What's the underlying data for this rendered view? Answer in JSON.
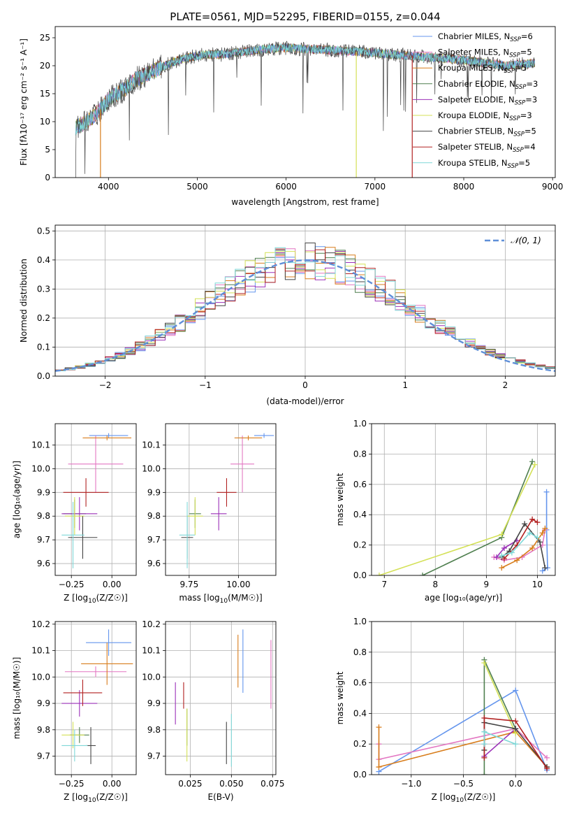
{
  "title": "PLATE=0561, MJD=52295, FIBERID=0155, z=0.044",
  "colors": {
    "chabrier_miles": "#6495ed",
    "salpeter_miles": "#e377c2",
    "kroupa_miles": "#d87d1c",
    "chabrier_elodie": "#4f7f4f",
    "salpeter_elodie": "#9b30b8",
    "kroupa_elodie": "#d4e157",
    "chabrier_stelib": "#444444",
    "salpeter_stelib": "#b22222",
    "kroupa_stelib": "#7fd8d8",
    "grid": "#b0b0b0",
    "normal_curve": "#5f8fd8"
  },
  "chart_data": [
    {
      "id": "spectrum",
      "type": "line",
      "xlabel": "wavelength [Angstrom, rest frame]",
      "ylabel": "Flux [fλ10⁻¹⁷ erg cm⁻² s⁻¹ A⁻¹]",
      "xlim": [
        3400,
        9030
      ],
      "ylim": [
        0,
        27
      ],
      "xticks": [
        4000,
        5000,
        6000,
        7000,
        8000,
        9000
      ],
      "yticks": [
        0,
        5,
        10,
        15,
        20,
        25
      ],
      "grid": false,
      "legend_position": "top-right",
      "legend": [
        {
          "label": "Chabrier MILES, N",
          "sub": "SSP",
          "tail": "=6",
          "color_key": "chabrier_miles"
        },
        {
          "label": "Salpeter MILES, N",
          "sub": "SSP",
          "tail": "=5",
          "color_key": "salpeter_miles"
        },
        {
          "label": "Kroupa MILES, N",
          "sub": "SSP",
          "tail": "=5",
          "color_key": "kroupa_miles"
        },
        {
          "label": "Chabrier ELODIE, N",
          "sub": "SSP",
          "tail": "=3",
          "color_key": "chabrier_elodie"
        },
        {
          "label": "Salpeter ELODIE, N",
          "sub": "SSP",
          "tail": "=3",
          "color_key": "salpeter_elodie"
        },
        {
          "label": "Kroupa ELODIE, N",
          "sub": "SSP",
          "tail": "=3",
          "color_key": "kroupa_elodie"
        },
        {
          "label": "Chabrier STELIB, N",
          "sub": "SSP",
          "tail": "=5",
          "color_key": "chabrier_stelib"
        },
        {
          "label": "Salpeter STELIB, N",
          "sub": "SSP",
          "tail": "=4",
          "color_key": "salpeter_stelib"
        },
        {
          "label": "Kroupa STELIB, N",
          "sub": "SSP",
          "tail": "=5",
          "color_key": "kroupa_stelib"
        }
      ],
      "data_envelope": {
        "x": [
          3630,
          3700,
          3800,
          3900,
          4000,
          4100,
          4200,
          4300,
          4500,
          4700,
          4900,
          5100,
          5300,
          5500,
          5800,
          6000,
          6200,
          6500,
          6800,
          7000,
          7200,
          7400,
          7600,
          8000,
          8500,
          8800
        ],
        "y": [
          9,
          9.5,
          10.5,
          12,
          14,
          15,
          16,
          17.5,
          19,
          20.5,
          21.5,
          22,
          22,
          22.5,
          23,
          23.2,
          23,
          22.8,
          22.5,
          22.3,
          22,
          21.8,
          21.5,
          21,
          20,
          20.5
        ]
      },
      "model_dropouts_x": [
        3910,
        6790,
        7420
      ]
    },
    {
      "id": "residuals",
      "type": "line",
      "xlabel": "(data-model)/error",
      "ylabel": "Normed distribution",
      "xlim": [
        -2.5,
        2.5
      ],
      "ylim": [
        0,
        0.52
      ],
      "xticks": [
        -2,
        -1,
        0,
        1,
        2
      ],
      "yticks": [
        0.0,
        0.1,
        0.2,
        0.3,
        0.4,
        0.5
      ],
      "grid": true,
      "legend_position": "top-right",
      "curve_label": "𝒩(0, 1)",
      "curve": {
        "mean": 0,
        "sigma": 1
      }
    },
    {
      "id": "age_vs_Z",
      "type": "scatter",
      "xlabel_main": "Z [log",
      "xlabel_sub": "10",
      "xlabel_tail": "(Z/Z☉)]",
      "ylabel": "age  [log₁₀(age/yr)]",
      "xlim": [
        -0.35,
        0.15
      ],
      "ylim": [
        9.55,
        10.19
      ],
      "xticks": [
        -0.25,
        0.0
      ],
      "yticks": [
        9.6,
        9.7,
        9.8,
        9.9,
        10.0,
        10.1
      ],
      "grid": true,
      "points": [
        {
          "x": -0.02,
          "y": 10.14,
          "xerr": 0.12,
          "yerr": 0.01,
          "color_key": "chabrier_miles"
        },
        {
          "x": -0.1,
          "y": 10.02,
          "xerr": 0.17,
          "yerr": 0.12,
          "color_key": "salpeter_miles"
        },
        {
          "x": -0.03,
          "y": 10.13,
          "xerr": 0.15,
          "yerr": 0.01,
          "color_key": "kroupa_miles"
        },
        {
          "x": -0.23,
          "y": 9.81,
          "xerr": 0.07,
          "yerr": 0.06,
          "color_key": "chabrier_elodie"
        },
        {
          "x": -0.2,
          "y": 9.81,
          "xerr": 0.11,
          "yerr": 0.07,
          "color_key": "salpeter_elodie"
        },
        {
          "x": -0.23,
          "y": 9.8,
          "xerr": 0.06,
          "yerr": 0.08,
          "color_key": "kroupa_elodie"
        },
        {
          "x": -0.18,
          "y": 9.71,
          "xerr": 0.09,
          "yerr": 0.09,
          "color_key": "chabrier_stelib"
        },
        {
          "x": -0.16,
          "y": 9.9,
          "xerr": 0.14,
          "yerr": 0.06,
          "color_key": "salpeter_stelib"
        },
        {
          "x": -0.24,
          "y": 9.72,
          "xerr": 0.07,
          "yerr": 0.14,
          "color_key": "kroupa_stelib"
        }
      ]
    },
    {
      "id": "age_vs_mass",
      "type": "scatter",
      "xlabel_main": "mass [log",
      "xlabel_sub": "10",
      "xlabel_tail": "(M/M☉)]",
      "xlim": [
        9.63,
        10.19
      ],
      "ylim": [
        9.55,
        10.19
      ],
      "xticks": [
        9.75,
        10.0
      ],
      "yticks": [
        9.6,
        9.7,
        9.8,
        9.9,
        10.0,
        10.1
      ],
      "grid": true,
      "points": [
        {
          "x": 10.13,
          "y": 10.14,
          "xerr": 0.05,
          "yerr": 0.01,
          "color_key": "chabrier_miles"
        },
        {
          "x": 10.02,
          "y": 10.02,
          "xerr": 0.06,
          "yerr": 0.12,
          "color_key": "salpeter_miles"
        },
        {
          "x": 10.05,
          "y": 10.13,
          "xerr": 0.07,
          "yerr": 0.01,
          "color_key": "kroupa_miles"
        },
        {
          "x": 9.78,
          "y": 9.81,
          "xerr": 0.03,
          "yerr": 0.06,
          "color_key": "chabrier_elodie"
        },
        {
          "x": 9.9,
          "y": 9.81,
          "xerr": 0.04,
          "yerr": 0.07,
          "color_key": "salpeter_elodie"
        },
        {
          "x": 9.78,
          "y": 9.8,
          "xerr": 0.04,
          "yerr": 0.08,
          "color_key": "kroupa_elodie"
        },
        {
          "x": 9.74,
          "y": 9.71,
          "xerr": 0.03,
          "yerr": 0.09,
          "color_key": "chabrier_stelib"
        },
        {
          "x": 9.94,
          "y": 9.9,
          "xerr": 0.05,
          "yerr": 0.06,
          "color_key": "salpeter_stelib"
        },
        {
          "x": 9.74,
          "y": 9.72,
          "xerr": 0.04,
          "yerr": 0.14,
          "color_key": "kroupa_stelib"
        }
      ]
    },
    {
      "id": "weight_vs_age",
      "type": "line",
      "xlabel": "age  [log₁₀(age/yr)]",
      "ylabel": "mass weight",
      "xlim": [
        6.75,
        10.35
      ],
      "ylim": [
        0,
        1.0
      ],
      "xticks": [
        7,
        8,
        9,
        10
      ],
      "yticks": [
        0.0,
        0.2,
        0.4,
        0.6,
        0.8,
        1.0
      ],
      "grid": true,
      "series": [
        {
          "color_key": "chabrier_miles",
          "x": [
            10.18,
            10.18,
            10.2,
            10.1
          ],
          "y": [
            0.55,
            0.3,
            0.05,
            0.03
          ]
        },
        {
          "color_key": "salpeter_miles",
          "x": [
            9.15,
            9.35,
            9.7,
            10.1,
            10.15
          ],
          "y": [
            0.12,
            0.1,
            0.12,
            0.2,
            0.3
          ]
        },
        {
          "color_key": "kroupa_miles",
          "x": [
            9.3,
            9.6,
            9.9,
            10.1,
            10.15
          ],
          "y": [
            0.05,
            0.1,
            0.18,
            0.28,
            0.31
          ]
        },
        {
          "color_key": "chabrier_elodie",
          "x": [
            7.75,
            9.3,
            9.9
          ],
          "y": [
            0.0,
            0.25,
            0.75
          ]
        },
        {
          "color_key": "salpeter_elodie",
          "x": [
            9.2,
            9.35,
            9.6
          ],
          "y": [
            0.12,
            0.18,
            0.23
          ]
        },
        {
          "color_key": "kroupa_elodie",
          "x": [
            6.9,
            9.3,
            9.95
          ],
          "y": [
            0.0,
            0.27,
            0.73
          ]
        },
        {
          "color_key": "chabrier_stelib",
          "x": [
            9.3,
            9.45,
            9.75,
            10.05,
            10.15
          ],
          "y": [
            0.12,
            0.16,
            0.34,
            0.22,
            0.05
          ]
        },
        {
          "color_key": "salpeter_stelib",
          "x": [
            9.35,
            9.6,
            9.9,
            10.0
          ],
          "y": [
            0.11,
            0.2,
            0.37,
            0.35
          ]
        },
        {
          "color_key": "kroupa_stelib",
          "x": [
            9.3,
            9.5,
            9.85,
            10.0
          ],
          "y": [
            0.13,
            0.15,
            0.28,
            0.25
          ]
        }
      ]
    },
    {
      "id": "mass_vs_Z",
      "type": "scatter",
      "xlabel_main": "Z [log",
      "xlabel_sub": "10",
      "xlabel_tail": "(Z/Z☉)]",
      "ylabel": "mass [log₁₀(M/M☉)]",
      "xlim": [
        -0.35,
        0.15
      ],
      "ylim": [
        9.63,
        10.21
      ],
      "xticks": [
        -0.25,
        0.0
      ],
      "yticks": [
        9.7,
        9.8,
        9.9,
        10.0,
        10.1,
        10.2
      ],
      "grid": true,
      "points": [
        {
          "x": -0.02,
          "y": 10.13,
          "xerr": 0.14,
          "yerr": 0.05,
          "color_key": "chabrier_miles"
        },
        {
          "x": -0.1,
          "y": 10.02,
          "xerr": 0.19,
          "yerr": 0.02,
          "color_key": "salpeter_miles"
        },
        {
          "x": -0.03,
          "y": 10.05,
          "xerr": 0.16,
          "yerr": 0.08,
          "color_key": "kroupa_miles"
        },
        {
          "x": -0.2,
          "y": 9.78,
          "xerr": 0.06,
          "yerr": 0.03,
          "color_key": "chabrier_elodie"
        },
        {
          "x": -0.2,
          "y": 9.9,
          "xerr": 0.11,
          "yerr": 0.05,
          "color_key": "salpeter_elodie"
        },
        {
          "x": -0.24,
          "y": 9.78,
          "xerr": 0.07,
          "yerr": 0.05,
          "color_key": "kroupa_elodie"
        },
        {
          "x": -0.13,
          "y": 9.74,
          "xerr": 0.03,
          "yerr": 0.07,
          "color_key": "chabrier_stelib"
        },
        {
          "x": -0.18,
          "y": 9.94,
          "xerr": 0.12,
          "yerr": 0.05,
          "color_key": "salpeter_stelib"
        },
        {
          "x": -0.23,
          "y": 9.74,
          "xerr": 0.08,
          "yerr": 0.06,
          "color_key": "kroupa_stelib"
        }
      ]
    },
    {
      "id": "mass_vs_ebv",
      "type": "scatter",
      "xlabel": "E(B-V)",
      "xlim": [
        0.01,
        0.077
      ],
      "ylim": [
        9.63,
        10.21
      ],
      "xticks": [
        0.025,
        0.05,
        0.075
      ],
      "yticks": [
        9.7,
        9.8,
        9.9,
        10.0,
        10.1,
        10.2
      ],
      "grid": true,
      "points": [
        {
          "x": 0.057,
          "y": 10.06,
          "xerr": 0,
          "yerr": 0.12,
          "color_key": "chabrier_miles"
        },
        {
          "x": 0.074,
          "y": 10.01,
          "xerr": 0,
          "yerr": 0.13,
          "color_key": "salpeter_miles"
        },
        {
          "x": 0.054,
          "y": 10.06,
          "xerr": 0,
          "yerr": 0.1,
          "color_key": "kroupa_miles"
        },
        {
          "x": 0.023,
          "y": 9.81,
          "xerr": 0,
          "yerr": 0.07,
          "color_key": "chabrier_elodie"
        },
        {
          "x": 0.016,
          "y": 9.9,
          "xerr": 0,
          "yerr": 0.08,
          "color_key": "salpeter_elodie"
        },
        {
          "x": 0.023,
          "y": 9.78,
          "xerr": 0,
          "yerr": 0.1,
          "color_key": "kroupa_elodie"
        },
        {
          "x": 0.047,
          "y": 9.75,
          "xerr": 0,
          "yerr": 0.08,
          "color_key": "chabrier_stelib"
        },
        {
          "x": 0.021,
          "y": 9.93,
          "xerr": 0,
          "yerr": 0.05,
          "color_key": "salpeter_stelib"
        },
        {
          "x": 0.05,
          "y": 9.76,
          "xerr": 0,
          "yerr": 0.1,
          "color_key": "kroupa_stelib"
        }
      ]
    },
    {
      "id": "weight_vs_Z",
      "type": "line",
      "xlabel_main": "Z [log",
      "xlabel_sub": "10",
      "xlabel_tail": "(Z/Z☉)]",
      "ylabel": "mass weight",
      "xlim": [
        -1.38,
        0.38
      ],
      "ylim": [
        0,
        1.0
      ],
      "xticks": [
        -1.0,
        -0.5,
        0.0
      ],
      "xticklabels": [
        "−1.0",
        "−0.5",
        "0.0"
      ],
      "yticks": [
        0.0,
        0.2,
        0.4,
        0.6,
        0.8,
        1.0
      ],
      "grid": true,
      "series": [
        {
          "color_key": "chabrier_miles",
          "x": [
            -1.31,
            0.0,
            0.3
          ],
          "y": [
            0.02,
            0.55,
            0.03
          ]
        },
        {
          "color_key": "salpeter_miles",
          "x": [
            -1.31,
            -1.31,
            0.0,
            0.3
          ],
          "y": [
            0.2,
            0.1,
            0.3,
            0.11
          ]
        },
        {
          "color_key": "kroupa_miles",
          "x": [
            -1.31,
            -1.31,
            0.0,
            0.3
          ],
          "y": [
            0.31,
            0.05,
            0.28,
            0.05
          ]
        },
        {
          "color_key": "chabrier_elodie",
          "x": [
            -0.3,
            -0.3,
            0.0
          ],
          "y": [
            0.0,
            0.75,
            0.3
          ]
        },
        {
          "color_key": "salpeter_elodie",
          "x": [
            -0.3,
            0.0
          ],
          "y": [
            0.12,
            0.3
          ]
        },
        {
          "color_key": "kroupa_elodie",
          "x": [
            -0.3,
            0.0
          ],
          "y": [
            0.73,
            0.27
          ]
        },
        {
          "color_key": "chabrier_stelib",
          "x": [
            -0.3,
            -0.3,
            0.0,
            0.3
          ],
          "y": [
            0.16,
            0.34,
            0.3,
            0.05
          ]
        },
        {
          "color_key": "salpeter_stelib",
          "x": [
            -0.3,
            -0.3,
            0.0,
            0.3
          ],
          "y": [
            0.11,
            0.37,
            0.35,
            0.04
          ]
        },
        {
          "color_key": "kroupa_stelib",
          "x": [
            -0.3,
            -0.3,
            0.0
          ],
          "y": [
            0.2,
            0.28,
            0.2
          ]
        }
      ]
    }
  ]
}
